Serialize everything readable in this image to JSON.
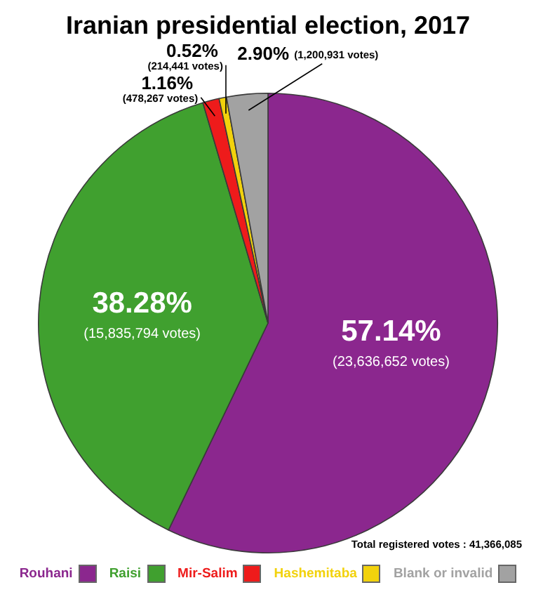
{
  "chart_data": {
    "type": "pie",
    "title": "Iranian presidential election, 2017",
    "categories": [
      "Rouhani",
      "Raisi",
      "Mir-Salim",
      "Hashemitaba",
      "Blank or invalid"
    ],
    "values": [
      57.14,
      38.28,
      1.16,
      0.52,
      2.9
    ],
    "colors": [
      "#8b278e",
      "#40a02f",
      "#ee1b1b",
      "#f2d20c",
      "#a2a2a2"
    ],
    "value_labels": [
      "57.14%",
      "38.28%",
      "1.16%",
      "0.52%",
      "2.90%"
    ],
    "annotations": [
      "(23,636,652 votes)",
      "(15,835,794 votes)",
      "(478,267 votes)",
      "(214,441 votes)",
      "(1,200,931 votes)",
      "Total registered votes : 41,366,085"
    ],
    "legend": "bottom"
  }
}
